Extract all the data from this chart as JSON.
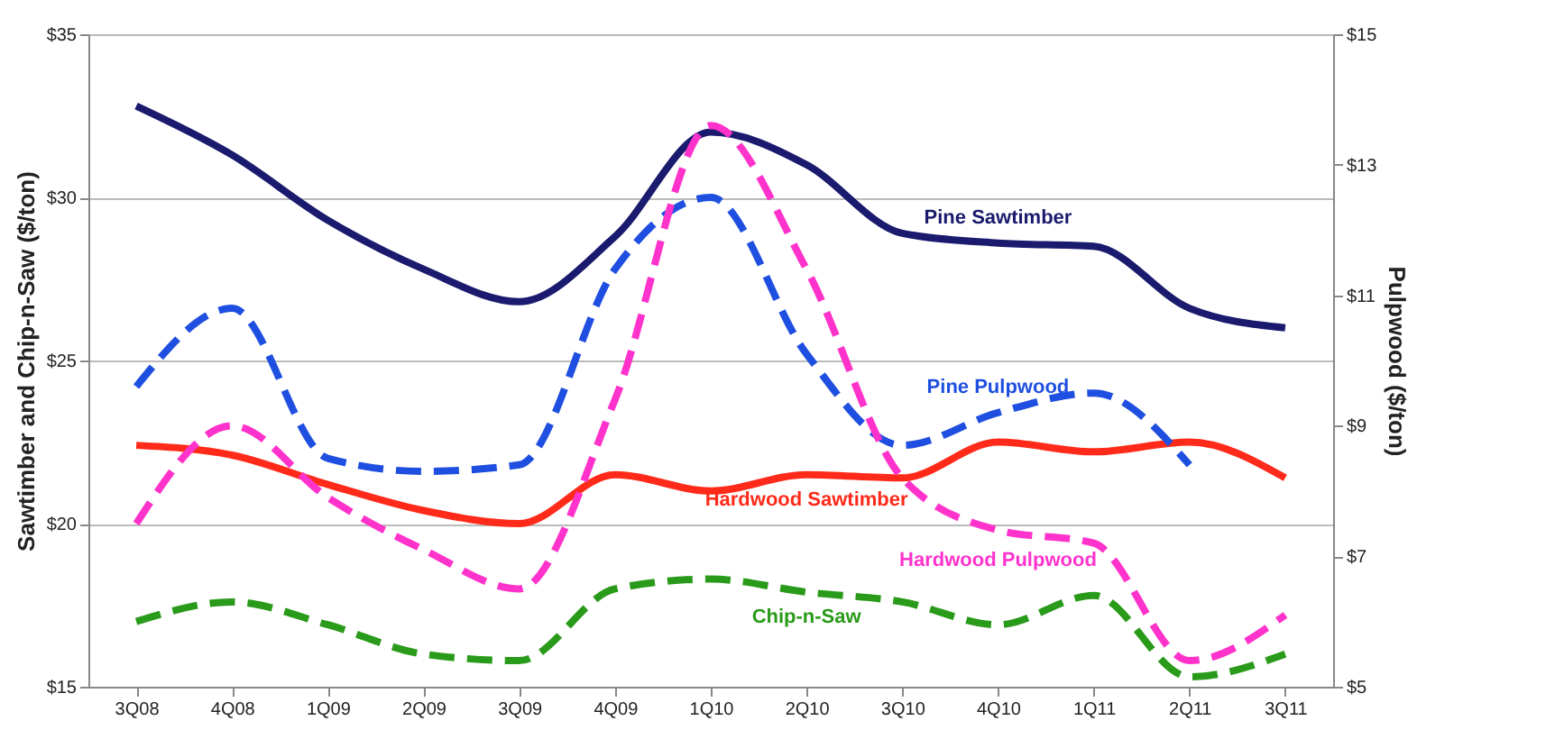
{
  "chart_data": {
    "type": "line",
    "ylabel": "Sawtimber and Chip-n-Saw ($/ton)",
    "y2label": "Pulpwood ($/ton)",
    "categories": [
      "3Q08",
      "4Q08",
      "1Q09",
      "2Q09",
      "3Q09",
      "4Q09",
      "1Q10",
      "2Q10",
      "3Q10",
      "4Q10",
      "1Q11",
      "2Q11",
      "3Q11"
    ],
    "ylim": [
      15,
      35
    ],
    "yticks": [
      {
        "value": 15,
        "label": "$15"
      },
      {
        "value": 20,
        "label": "$20"
      },
      {
        "value": 25,
        "label": "$25"
      },
      {
        "value": 30,
        "label": "$30"
      },
      {
        "value": 35,
        "label": "$35"
      }
    ],
    "y2lim": [
      5,
      15
    ],
    "y2ticks": [
      {
        "value": 5,
        "label": "$5"
      },
      {
        "value": 7,
        "label": "$7"
      },
      {
        "value": 9,
        "label": "$9"
      },
      {
        "value": 11,
        "label": "$11"
      },
      {
        "value": 13,
        "label": "$13"
      },
      {
        "value": 15,
        "label": "$15"
      }
    ],
    "grid": "y",
    "marker": "none",
    "series": [
      {
        "name": "Pine Sawtimber",
        "color": "#1a1a6e",
        "line_style": "solid",
        "values": [
          32.8,
          31.3,
          29.3,
          27.8,
          26.8,
          28.8,
          32.0,
          31.0,
          28.9,
          28.6,
          28.5,
          26.6,
          26.0
        ]
      },
      {
        "name": "Pine Pulpwood",
        "color": "#1f4fe0",
        "line_style": "dashed",
        "axis": "y2",
        "values": [
          9.6,
          10.8,
          8.5,
          8.3,
          8.4,
          11.4,
          12.5,
          10.1,
          8.7,
          9.2,
          9.5,
          8.4,
          null
        ]
      },
      {
        "name": "Hardwood Sawtimber",
        "color": "#ff2a1a",
        "line_style": "solid",
        "values": [
          22.4,
          22.1,
          21.2,
          20.4,
          20.0,
          21.5,
          21.0,
          21.5,
          21.4,
          22.5,
          22.2,
          22.5,
          21.4
        ]
      },
      {
        "name": "Hardwood Pulpwood",
        "color": "#ff33cc",
        "line_style": "dashed",
        "axis": "y2",
        "values": [
          7.5,
          9.0,
          7.9,
          7.1,
          6.5,
          9.4,
          13.6,
          11.4,
          8.2,
          7.4,
          7.2,
          5.4,
          6.1
        ]
      },
      {
        "name": "Chip-n-Saw",
        "color": "#2a9a1a",
        "line_style": "dashed",
        "values": [
          17.0,
          17.6,
          16.9,
          16.0,
          15.8,
          18.0,
          18.3,
          17.9,
          17.6,
          16.9,
          17.8,
          15.3,
          16.0
        ]
      }
    ]
  }
}
